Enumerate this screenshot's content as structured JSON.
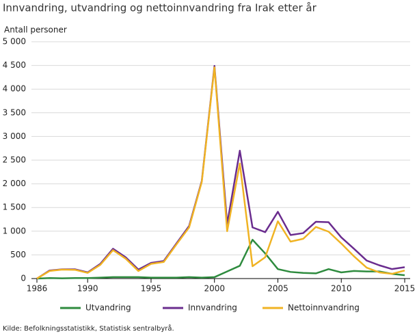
{
  "chart_data": {
    "type": "line",
    "title": "Innvandring, utvandring og nettoinnvandring fra Irak etter år",
    "y_label": "Antall personer",
    "source": "Kilde: Befolkningsstatistikk, Statistisk sentralbyrå.",
    "x": [
      1986,
      1987,
      1988,
      1989,
      1990,
      1991,
      1992,
      1993,
      1994,
      1995,
      1996,
      1997,
      1998,
      1999,
      2000,
      2001,
      2002,
      2003,
      2004,
      2005,
      2006,
      2007,
      2008,
      2009,
      2010,
      2011,
      2012,
      2013,
      2014,
      2015
    ],
    "xlim": [
      1986,
      2015
    ],
    "xticks": [
      1986,
      1990,
      1995,
      2000,
      2005,
      2010,
      2015
    ],
    "ylim": [
      0,
      5000
    ],
    "yticks": [
      0,
      500,
      {
        "value": 1000,
        "label": "1 000"
      },
      {
        "value": 1500,
        "label": "1 500"
      },
      {
        "value": 2000,
        "label": "2 000"
      },
      {
        "value": 2500,
        "label": "2 500"
      },
      {
        "value": 3000,
        "label": "3 000"
      },
      {
        "value": 3500,
        "label": "3 500"
      },
      {
        "value": 4000,
        "label": "4 000"
      },
      {
        "value": 4500,
        "label": "4 500"
      },
      {
        "value": 5000,
        "label": "5 000"
      }
    ],
    "grid": true,
    "legend": "bottom",
    "series": [
      {
        "name": "Utvandring",
        "color": "#2e8b3e",
        "values": [
          0,
          10,
          5,
          10,
          10,
          20,
          30,
          30,
          30,
          20,
          20,
          20,
          30,
          20,
          30,
          150,
          270,
          820,
          530,
          200,
          140,
          120,
          110,
          200,
          130,
          160,
          150,
          150,
          100,
          70
        ]
      },
      {
        "name": "Innvandring",
        "color": "#6a2c8e",
        "values": [
          0,
          170,
          195,
          195,
          130,
          310,
          630,
          450,
          190,
          330,
          370,
          740,
          1110,
          2060,
          4490,
          1150,
          2700,
          1080,
          980,
          1410,
          920,
          960,
          1200,
          1190,
          870,
          630,
          380,
          280,
          200,
          240
        ]
      },
      {
        "name": "Nettoinnvandring",
        "color": "#f0b323",
        "values": [
          0,
          160,
          190,
          185,
          120,
          290,
          600,
          420,
          160,
          310,
          350,
          720,
          1080,
          2040,
          4460,
          1000,
          2430,
          260,
          450,
          1210,
          780,
          840,
          1090,
          990,
          740,
          470,
          230,
          130,
          100,
          170
        ]
      }
    ]
  }
}
